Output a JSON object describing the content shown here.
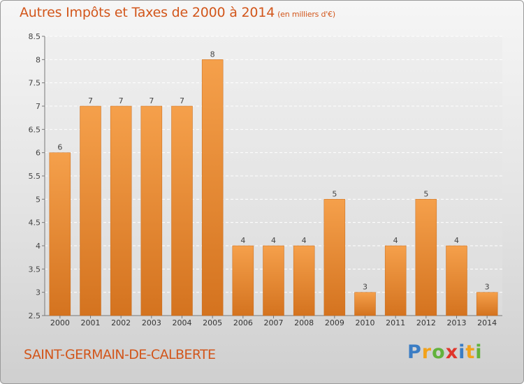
{
  "title": "Autres Impôts et Taxes de 2000 à 2014",
  "unit_note": "(en milliers d'€)",
  "commune": "SAINT-GERMAIN-DE-CALBERTE",
  "logo": {
    "letters": [
      "P",
      "r",
      "o",
      "x",
      "i",
      "t",
      "i"
    ],
    "colors": [
      "#3b7dc4",
      "#f2a21b",
      "#62b23c",
      "#e0352b",
      "#3b7dc4",
      "#f2a21b",
      "#62b23c"
    ]
  },
  "colors": {
    "accent": "#d2561b",
    "bar_light": "#f5a04b",
    "bar_dark": "#d4731f"
  },
  "chart_data": {
    "type": "bar",
    "title": "Autres Impôts et Taxes de 2000 à 2014",
    "subtitle": "(en milliers d'€)",
    "categories": [
      "2000",
      "2001",
      "2002",
      "2003",
      "2004",
      "2005",
      "2006",
      "2007",
      "2008",
      "2009",
      "2010",
      "2011",
      "2012",
      "2013",
      "2014"
    ],
    "values": [
      6,
      7,
      7,
      7,
      7,
      8,
      4,
      4,
      4,
      5,
      3,
      4,
      5,
      4,
      3
    ],
    "xlabel": "",
    "ylabel": "",
    "ylim": [
      2.5,
      8.5
    ],
    "yticks": [
      "2.5",
      "3",
      "3.5",
      "4",
      "4.5",
      "5",
      "5.5",
      "6",
      "6.5",
      "7",
      "7.5",
      "8",
      "8.5"
    ],
    "grid": true
  }
}
